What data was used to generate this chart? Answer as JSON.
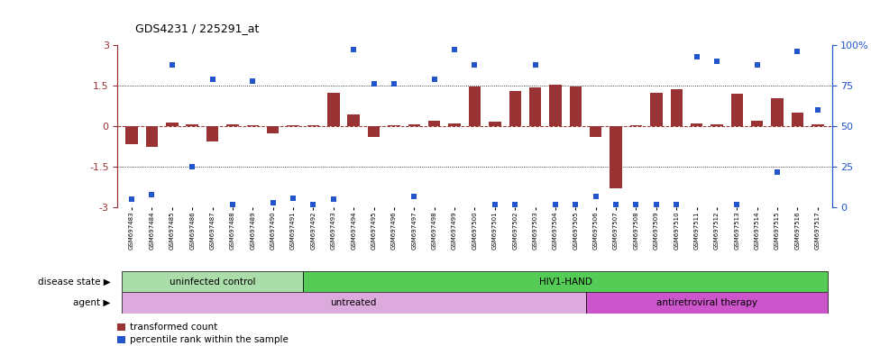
{
  "title": "GDS4231 / 225291_at",
  "samples": [
    "GSM697483",
    "GSM697484",
    "GSM697485",
    "GSM697486",
    "GSM697487",
    "GSM697488",
    "GSM697489",
    "GSM697490",
    "GSM697491",
    "GSM697492",
    "GSM697493",
    "GSM697494",
    "GSM697495",
    "GSM697496",
    "GSM697497",
    "GSM697498",
    "GSM697499",
    "GSM697500",
    "GSM697501",
    "GSM697502",
    "GSM697503",
    "GSM697504",
    "GSM697505",
    "GSM697506",
    "GSM697507",
    "GSM697508",
    "GSM697509",
    "GSM697510",
    "GSM697511",
    "GSM697512",
    "GSM697513",
    "GSM697514",
    "GSM697515",
    "GSM697516",
    "GSM697517"
  ],
  "bar_values": [
    -0.65,
    -0.75,
    0.15,
    0.08,
    -0.55,
    0.08,
    0.05,
    -0.25,
    0.05,
    0.05,
    1.25,
    0.45,
    -0.38,
    0.05,
    0.08,
    0.2,
    0.12,
    1.48,
    0.18,
    1.3,
    1.42,
    1.55,
    1.48,
    -0.38,
    -2.3,
    0.05,
    1.25,
    1.38,
    0.12,
    0.08,
    1.2,
    0.22,
    1.05,
    0.5,
    0.08
  ],
  "scatter_values_pct": [
    5,
    8,
    88,
    25,
    79,
    2,
    78,
    3,
    6,
    2,
    5,
    97,
    76,
    76,
    7,
    79,
    97,
    88,
    2,
    2,
    88,
    2,
    2,
    7,
    2,
    2,
    2,
    2,
    93,
    90,
    2,
    88,
    22,
    96,
    60
  ],
  "bar_color": "#993333",
  "scatter_color": "#2255cc",
  "ylim": [
    -3,
    3
  ],
  "y2lim": [
    0,
    100
  ],
  "yticks": [
    -3,
    -1.5,
    0,
    1.5,
    3
  ],
  "ytick_labels": [
    "-3",
    "-1.5",
    "0",
    "1.5",
    "3"
  ],
  "y2ticks": [
    0,
    25,
    50,
    75,
    100
  ],
  "y2tick_labels": [
    "0",
    "25",
    "50",
    "75",
    "100%"
  ],
  "disease_state_labels": [
    "uninfected control",
    "HIV1-HAND"
  ],
  "disease_state_colors": [
    "#aaddaa",
    "#55cc55"
  ],
  "disease_state_ranges": [
    [
      0,
      9
    ],
    [
      9,
      35
    ]
  ],
  "agent_labels": [
    "untreated",
    "antiretroviral therapy"
  ],
  "agent_colors": [
    "#ddaadd",
    "#cc55cc"
  ],
  "agent_ranges": [
    [
      0,
      23
    ],
    [
      23,
      35
    ]
  ],
  "background_color": "#ffffff",
  "legend_bar_label": "transformed count",
  "legend_scatter_label": "percentile rank within the sample"
}
